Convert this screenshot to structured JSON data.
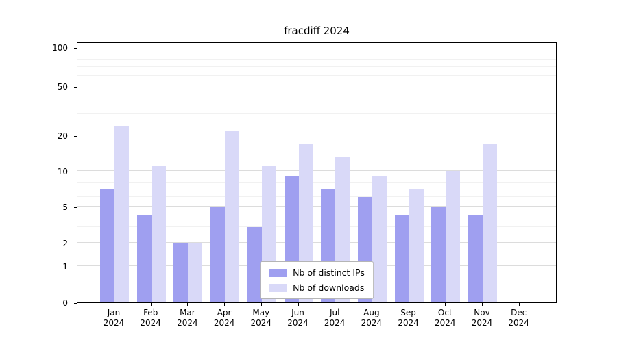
{
  "title": "fracdiff 2024",
  "colors": {
    "distinct_ips": "#9f9ff0",
    "downloads": "#d9d9f8",
    "grid_major": "#dcdcdc",
    "grid_minor": "#f1f1f1",
    "spine": "#000000"
  },
  "legend": {
    "items": [
      {
        "label": "Nb of distinct IPs"
      },
      {
        "label": "Nb of downloads"
      }
    ]
  },
  "chart_data": {
    "type": "bar",
    "title": "fracdiff 2024",
    "categories": [
      "Jan\n2024",
      "Feb\n2024",
      "Mar\n2024",
      "Apr\n2024",
      "May\n2024",
      "Jun\n2024",
      "Jul\n2024",
      "Aug\n2024",
      "Sep\n2024",
      "Oct\n2024",
      "Nov\n2024",
      "Dec\n2024"
    ],
    "series": [
      {
        "name": "Nb of distinct IPs",
        "color": "#9f9ff0",
        "values": [
          7,
          4,
          2,
          5,
          3,
          9,
          7,
          6,
          4,
          5,
          4,
          0
        ]
      },
      {
        "name": "Nb of downloads",
        "color": "#d9d9f8",
        "values": [
          24,
          11,
          2,
          22,
          11,
          17,
          13,
          9,
          7,
          10,
          17,
          0
        ]
      }
    ],
    "xlabel": "",
    "ylabel": "",
    "yscale": "symlog",
    "ylim": [
      0,
      110
    ],
    "yticks": [
      0,
      1,
      2,
      5,
      10,
      20,
      50,
      100
    ],
    "minor_gridlines": [
      3,
      4,
      6,
      7,
      8,
      9,
      30,
      40,
      60,
      70,
      80,
      90
    ],
    "grid": true,
    "legend_position": "lower center",
    "scale_anchors": {
      "values": [
        0,
        1,
        2,
        5,
        10,
        20,
        50,
        100
      ],
      "fractions": [
        0,
        0.139,
        0.228,
        0.367,
        0.504,
        0.64,
        0.829,
        0.979
      ]
    }
  }
}
